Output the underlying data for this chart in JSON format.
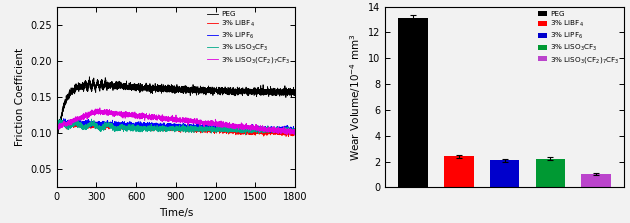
{
  "line_chart": {
    "xlabel": "Time/s",
    "ylabel": "Friction Coefficient",
    "xlim": [
      0,
      1800
    ],
    "ylim": [
      0.025,
      0.275
    ],
    "xticks": [
      0,
      300,
      600,
      900,
      1200,
      1500,
      1800
    ],
    "yticks": [
      0.05,
      0.1,
      0.15,
      0.2,
      0.25
    ],
    "legend_labels": [
      "PEG",
      "3% LiBF$_4$",
      "3% LiPF$_6$",
      "3% LiSO$_3$CF$_3$",
      "3% LiSO$_3$(CF$_2$)$_7$CF$_3$"
    ],
    "line_colors": [
      "#000000",
      "#ff0000",
      "#0000ff",
      "#00aa88",
      "#dd00dd"
    ],
    "bg_color": "#f0f0f0"
  },
  "bar_chart": {
    "values": [
      13.1,
      2.4,
      2.1,
      2.2,
      1.05
    ],
    "errors": [
      0.22,
      0.1,
      0.1,
      0.12,
      0.07
    ],
    "bar_colors": [
      "#000000",
      "#ff0000",
      "#0000cc",
      "#009933",
      "#bb44cc"
    ],
    "ylabel": "Wear Volume/10$^{-4}$ mm$^3$",
    "ylim": [
      0,
      14
    ],
    "yticks": [
      0,
      2,
      4,
      6,
      8,
      10,
      12,
      14
    ],
    "legend_labels": [
      "PEG",
      "3% LiBF$_4$",
      "3% LiPF$_6$",
      "3% LiSO$_3$CF$_3$",
      "3% LiSO$_3$(CF$_2$)$_7$CF$_3$"
    ],
    "legend_colors": [
      "#000000",
      "#ff0000",
      "#0000cc",
      "#009933",
      "#bb44cc"
    ]
  }
}
